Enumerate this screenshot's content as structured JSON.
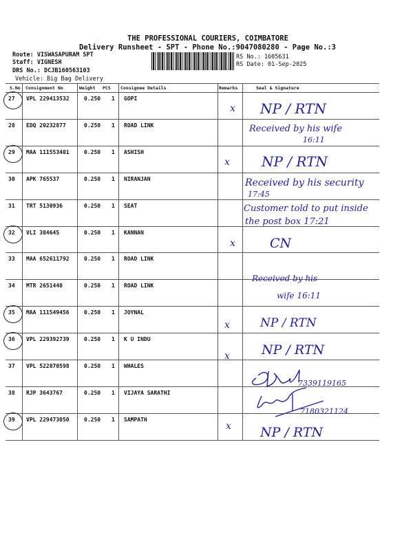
{
  "header": {
    "company": "THE PROFESSIONAL COURIERS, COIMBATORE",
    "subtitle": "Delivery Runsheet - SPT - Phone No.:9047080280 - Page No.:3",
    "route": "Route: VISWASAPURAM SPT",
    "staff": "Staff: VIGNESH",
    "drs_no": "DRS No.: DCJB160563103",
    "vehicle": "Vehicle: Big Bag Delivery",
    "rs_no": "RS No.: 1605631",
    "rs_date": "RS Date: 01-Sep-2025"
  },
  "columns": {
    "sno": "S.No",
    "consignment": "Consignment No",
    "weight": "Weight",
    "pcs": "PCS",
    "consignee": "Consignee Details",
    "remarks": "Remarks",
    "seal": "Seal & Signature"
  },
  "rows": [
    {
      "sno": "27",
      "consignment": "VPL 229413532",
      "weight": "0.250",
      "pcs": "1",
      "consignee": "GOPI",
      "circled": true
    },
    {
      "sno": "28",
      "consignment": "EDQ 20232877",
      "weight": "0.250",
      "pcs": "1",
      "consignee": "ROAD LINK",
      "circled": false
    },
    {
      "sno": "29",
      "consignment": "MAA 111553401",
      "weight": "0.250",
      "pcs": "1",
      "consignee": "ASHISH",
      "circled": true
    },
    {
      "sno": "30",
      "consignment": "APK 765537",
      "weight": "0.250",
      "pcs": "1",
      "consignee": "NIRANJAN",
      "circled": false
    },
    {
      "sno": "31",
      "consignment": "TRT 5130936",
      "weight": "0.250",
      "pcs": "1",
      "consignee": "SEAT",
      "circled": false
    },
    {
      "sno": "32",
      "consignment": "VLI 384645",
      "weight": "0.250",
      "pcs": "1",
      "consignee": "KANNAN",
      "circled": true
    },
    {
      "sno": "33",
      "consignment": "MAA 652611792",
      "weight": "0.250",
      "pcs": "1",
      "consignee": "ROAD LINK",
      "circled": false
    },
    {
      "sno": "34",
      "consignment": "MTR 2651440",
      "weight": "0.250",
      "pcs": "1",
      "consignee": "ROAD LINK",
      "circled": false
    },
    {
      "sno": "35",
      "consignment": "MAA 111549456",
      "weight": "0.250",
      "pcs": "1",
      "consignee": "JOYNAL",
      "circled": true
    },
    {
      "sno": "36",
      "consignment": "VPL 229392739",
      "weight": "0.250",
      "pcs": "1",
      "consignee": "K U INDU",
      "circled": true
    },
    {
      "sno": "37",
      "consignment": "VPL 522870598",
      "weight": "0.250",
      "pcs": "1",
      "consignee": "WHALES",
      "circled": false
    },
    {
      "sno": "38",
      "consignment": "RJP 3643767",
      "weight": "0.250",
      "pcs": "1",
      "consignee": "VIJAYA SARATHI",
      "circled": false
    },
    {
      "sno": "39",
      "consignment": "VPL 229473050",
      "weight": "0.250",
      "pcs": "1",
      "consignee": "SAMPATH",
      "circled": true
    }
  ],
  "handwritten": [
    {
      "text": "x"
    },
    {
      "text": "NP / RTN"
    },
    {
      "text": "Received by his wife"
    },
    {
      "text": "16:11"
    },
    {
      "text": "x"
    },
    {
      "text": "NP / RTN"
    },
    {
      "text": "Received by his security"
    },
    {
      "text": "17:45"
    },
    {
      "text": "Customer told to put inside"
    },
    {
      "text": "the post box 17:21"
    },
    {
      "text": "x"
    },
    {
      "text": "CN"
    },
    {
      "text": "Received by his"
    },
    {
      "text": "wife 16:11"
    },
    {
      "text": "x"
    },
    {
      "text": "NP / RTN"
    },
    {
      "text": "x"
    },
    {
      "text": "NP / RTN"
    },
    {
      "text": "7339119165"
    },
    {
      "text": "7180321124"
    },
    {
      "text": "x"
    },
    {
      "text": "NP / RTN"
    }
  ],
  "colors": {
    "ink": "#23238f",
    "print": "#111111"
  }
}
